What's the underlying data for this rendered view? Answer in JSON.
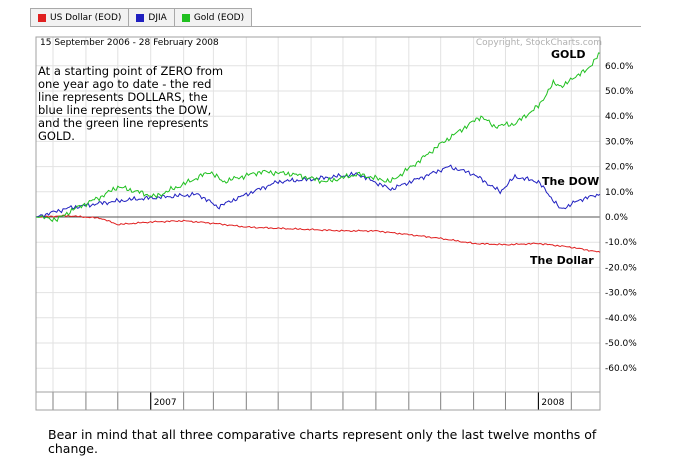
{
  "legend_tabs": [
    {
      "label": "US Dollar (EOD)",
      "color": "#e02020"
    },
    {
      "label": "DJIA",
      "color": "#2020c0"
    },
    {
      "label": "Gold (EOD)",
      "color": "#20c020"
    }
  ],
  "date_range": "15 September 2006 - 28 February 2008",
  "copyright": "Copyright, StockCharts.com",
  "note": "At a starting point of ZERO from one year ago to date - the red line represents DOLLARS, the blue line represents the DOW, and the green line represents GOLD.",
  "caption": "Bear in mind that all three comparative charts represent only the last twelve months of change.",
  "chart_data": {
    "type": "line",
    "x_range": [
      "2006-09-15",
      "2008-02-28"
    ],
    "x_tick_labels": [
      "2007",
      "2008"
    ],
    "ylim": [
      -70,
      70
    ],
    "y_ticks": [
      60,
      50,
      40,
      30,
      20,
      10,
      0,
      -10,
      -20,
      -30,
      -40,
      -50,
      -60
    ],
    "y_tick_labels": [
      "60.0%",
      "50.0%",
      "40.0%",
      "30.0%",
      "20.0%",
      "10.0%",
      "0.0%",
      "-10.0%",
      "-20.0%",
      "-30.0%",
      "-40.0%",
      "-50.0%",
      "-60.0%"
    ],
    "grid": true,
    "legend": "top",
    "annotations": [
      "GOLD",
      "The DOW",
      "The Dollar"
    ],
    "series": [
      {
        "name": "US Dollar (EOD)",
        "color": "#e02020",
        "points": [
          [
            "2006-09-15",
            0
          ],
          [
            "2006-10-15",
            0.5
          ],
          [
            "2006-11-15",
            -0.5
          ],
          [
            "2006-12-01",
            -3
          ],
          [
            "2007-01-01",
            -2
          ],
          [
            "2007-02-01",
            -1.5
          ],
          [
            "2007-03-01",
            -2.5
          ],
          [
            "2007-04-01",
            -4
          ],
          [
            "2007-05-01",
            -4.5
          ],
          [
            "2007-06-01",
            -5
          ],
          [
            "2007-07-01",
            -5.5
          ],
          [
            "2007-08-01",
            -5.5
          ],
          [
            "2007-09-01",
            -7
          ],
          [
            "2007-10-01",
            -8.5
          ],
          [
            "2007-11-01",
            -10.5
          ],
          [
            "2007-12-01",
            -11
          ],
          [
            "2008-01-01",
            -10.5
          ],
          [
            "2008-02-01",
            -12
          ],
          [
            "2008-02-28",
            -14
          ]
        ]
      },
      {
        "name": "DJIA",
        "color": "#2020c0",
        "points": [
          [
            "2006-09-15",
            0
          ],
          [
            "2006-10-15",
            3.5
          ],
          [
            "2006-11-15",
            5.5
          ],
          [
            "2006-12-15",
            7
          ],
          [
            "2007-01-15",
            8
          ],
          [
            "2007-02-15",
            9
          ],
          [
            "2007-03-05",
            4
          ],
          [
            "2007-04-01",
            9
          ],
          [
            "2007-05-01",
            14
          ],
          [
            "2007-06-01",
            15
          ],
          [
            "2007-07-15",
            17
          ],
          [
            "2007-08-15",
            11
          ],
          [
            "2007-09-15",
            16
          ],
          [
            "2007-10-09",
            20
          ],
          [
            "2007-11-01",
            17
          ],
          [
            "2007-11-26",
            10
          ],
          [
            "2007-12-10",
            16
          ],
          [
            "2008-01-01",
            14
          ],
          [
            "2008-01-22",
            3
          ],
          [
            "2008-02-10",
            7
          ],
          [
            "2008-02-28",
            9
          ]
        ]
      },
      {
        "name": "Gold (EOD)",
        "color": "#20c020",
        "points": [
          [
            "2006-09-15",
            0
          ],
          [
            "2006-10-05",
            -1
          ],
          [
            "2006-10-20",
            3
          ],
          [
            "2006-11-15",
            8
          ],
          [
            "2006-12-01",
            12
          ],
          [
            "2006-12-20",
            10
          ],
          [
            "2007-01-05",
            8
          ],
          [
            "2007-02-01",
            13
          ],
          [
            "2007-02-26",
            18
          ],
          [
            "2007-03-10",
            14
          ],
          [
            "2007-04-15",
            18
          ],
          [
            "2007-05-15",
            17
          ],
          [
            "2007-06-15",
            14
          ],
          [
            "2007-07-15",
            17
          ],
          [
            "2007-08-15",
            14
          ],
          [
            "2007-09-10",
            22
          ],
          [
            "2007-10-01",
            29
          ],
          [
            "2007-11-08",
            40
          ],
          [
            "2007-11-20",
            36
          ],
          [
            "2007-12-10",
            37
          ],
          [
            "2008-01-01",
            44
          ],
          [
            "2008-01-15",
            53
          ],
          [
            "2008-01-25",
            52
          ],
          [
            "2008-02-05",
            56
          ],
          [
            "2008-02-15",
            58
          ],
          [
            "2008-02-28",
            65
          ]
        ]
      }
    ]
  }
}
